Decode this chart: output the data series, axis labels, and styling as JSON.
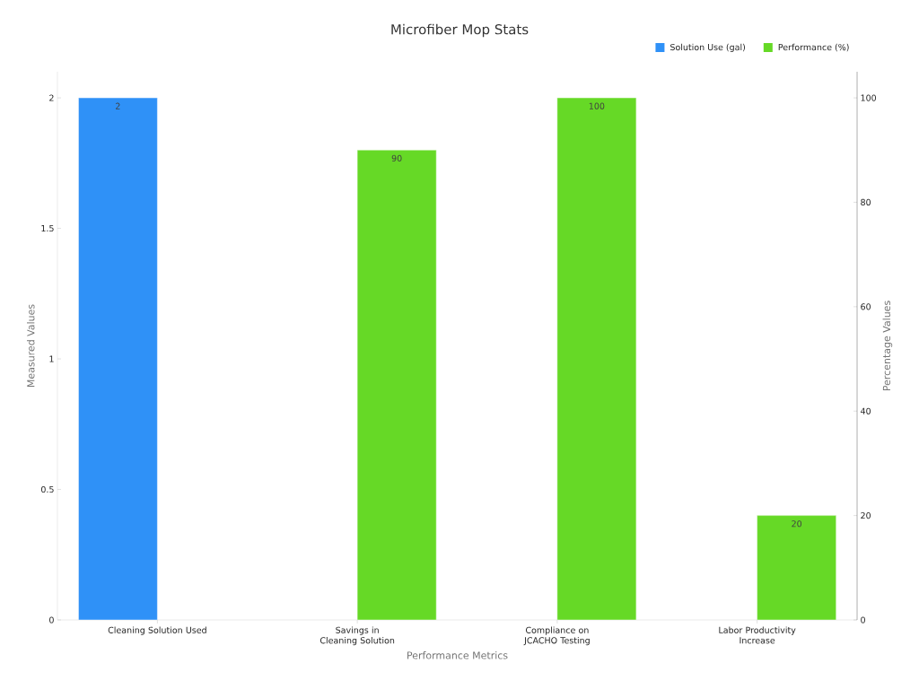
{
  "chart_data": {
    "type": "bar",
    "title": "Microfiber Mop Stats",
    "xlabel": "Performance Metrics",
    "ylabel": "Measured Values",
    "y2label": "Percentage Values",
    "categories": [
      "Cleaning Solution Used",
      "Savings in Cleaning Solution",
      "Compliance on JCACHO Testing",
      "Labor Productivity Increase"
    ],
    "series": [
      {
        "name": "Solution Use (gal)",
        "color": "#2f91f7",
        "values": [
          2,
          null,
          null,
          null
        ]
      },
      {
        "name": "Performance (%)",
        "color": "#66d926",
        "axis": "y2",
        "values": [
          null,
          90,
          100,
          20
        ]
      }
    ],
    "ylim": [
      0,
      2.1
    ],
    "yticks": [
      0,
      0.5,
      1,
      1.5,
      2
    ],
    "y2lim": [
      0,
      105
    ],
    "y2ticks": [
      0,
      20,
      40,
      60,
      80,
      100
    ],
    "data_labels": true,
    "legend": "top right",
    "grid": false
  }
}
